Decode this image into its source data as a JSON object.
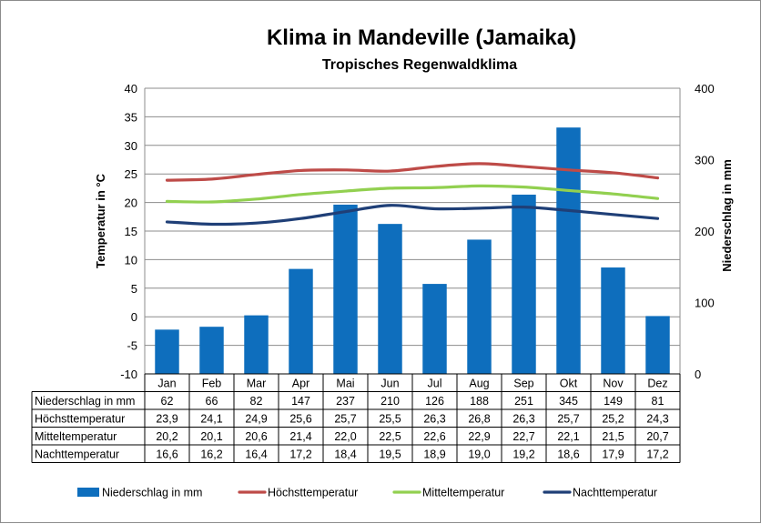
{
  "chart_data": {
    "type": "bar",
    "title": "Klima in Mandeville (Jamaika)",
    "subtitle": "Tropisches Regenwaldklima",
    "ylabel": "Temperatur in °C",
    "y2label": "Niederschlag in mm",
    "ylim": [
      -10,
      40
    ],
    "y2lim": [
      0,
      400
    ],
    "yticks": [
      "40",
      "35",
      "30",
      "25",
      "20",
      "15",
      "10",
      "5",
      "0",
      "-5",
      "-10"
    ],
    "y2ticks": [
      "400",
      "300",
      "200",
      "100",
      "0"
    ],
    "grid": true,
    "legend_position": "bottom",
    "categories": [
      "Jan",
      "Feb",
      "Mar",
      "Apr",
      "Mai",
      "Jun",
      "Jul",
      "Aug",
      "Sep",
      "Okt",
      "Nov",
      "Dez"
    ],
    "series": [
      {
        "name": "Niederschlag in mm",
        "type": "bar",
        "axis": "right",
        "color": "#0e6ebd",
        "values": [
          62,
          66,
          82,
          147,
          237,
          210,
          126,
          188,
          251,
          345,
          149,
          81
        ],
        "labels": [
          "62",
          "66",
          "82",
          "147",
          "237",
          "210",
          "126",
          "188",
          "251",
          "345",
          "149",
          "81"
        ]
      },
      {
        "name": "Höchsttemperatur",
        "type": "line",
        "axis": "left",
        "color": "#be4b48",
        "values": [
          23.9,
          24.1,
          24.9,
          25.6,
          25.7,
          25.5,
          26.3,
          26.8,
          26.3,
          25.7,
          25.2,
          24.3
        ],
        "labels": [
          "23,9",
          "24,1",
          "24,9",
          "25,6",
          "25,7",
          "25,5",
          "26,3",
          "26,8",
          "26,3",
          "25,7",
          "25,2",
          "24,3"
        ]
      },
      {
        "name": "Mitteltemperatur",
        "type": "line",
        "axis": "left",
        "color": "#92d050",
        "values": [
          20.2,
          20.1,
          20.6,
          21.4,
          22.0,
          22.5,
          22.6,
          22.9,
          22.7,
          22.1,
          21.5,
          20.7
        ],
        "labels": [
          "20,2",
          "20,1",
          "20,6",
          "21,4",
          "22,0",
          "22,5",
          "22,6",
          "22,9",
          "22,7",
          "22,1",
          "21,5",
          "20,7"
        ]
      },
      {
        "name": "Nachttemperatur",
        "type": "line",
        "axis": "left",
        "color": "#1f3f77",
        "values": [
          16.6,
          16.2,
          16.4,
          17.2,
          18.4,
          19.5,
          18.9,
          19.0,
          19.2,
          18.6,
          17.9,
          17.2
        ],
        "labels": [
          "16,6",
          "16,2",
          "16,4",
          "17,2",
          "18,4",
          "19,5",
          "18,9",
          "19,0",
          "19,2",
          "18,6",
          "17,9",
          "17,2"
        ]
      }
    ]
  }
}
